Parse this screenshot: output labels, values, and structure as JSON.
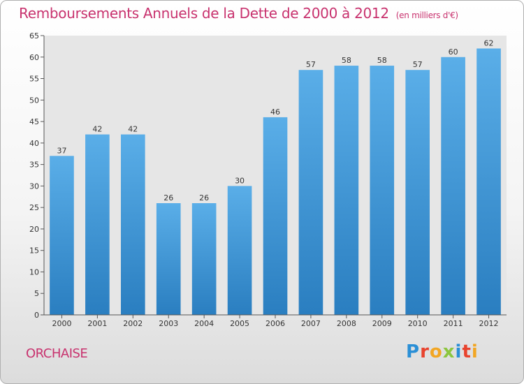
{
  "header": {
    "title": "Remboursements Annuels de la Dette de 2000 à 2012",
    "unit": "(en milliers d'€)"
  },
  "footer": {
    "commune": "ORCHAISE",
    "logo_text": "Proxiti"
  },
  "colors": {
    "title": "#c8326e",
    "bar_top": "#5aaee8",
    "bar_bottom": "#2a7ec0",
    "plot_bg": "#e6e6e6"
  },
  "chart_data": {
    "type": "bar",
    "title": "Remboursements Annuels de la Dette de 2000 à 2012",
    "xlabel": "",
    "ylabel": "",
    "categories": [
      "2000",
      "2001",
      "2002",
      "2003",
      "2004",
      "2005",
      "2006",
      "2007",
      "2008",
      "2009",
      "2010",
      "2011",
      "2012"
    ],
    "values": [
      37,
      42,
      42,
      26,
      26,
      30,
      46,
      57,
      58,
      58,
      57,
      60,
      62
    ],
    "ylim": [
      0,
      65
    ],
    "yticks": [
      0,
      5,
      10,
      15,
      20,
      25,
      30,
      35,
      40,
      45,
      50,
      55,
      60,
      65
    ],
    "grid": false,
    "data_labels": true
  }
}
